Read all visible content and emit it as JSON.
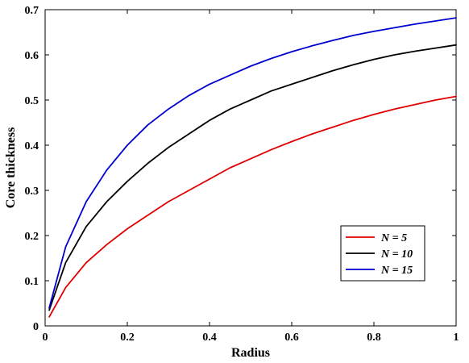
{
  "chart_data": {
    "type": "line",
    "title": "",
    "xlabel": "Radius",
    "ylabel": "Core thickness",
    "xlim": [
      0,
      1
    ],
    "ylim": [
      0,
      0.7
    ],
    "xticks": [
      0,
      0.2,
      0.4,
      0.6,
      0.8,
      1
    ],
    "xtick_labels": [
      "0",
      "0.2",
      "0.4",
      "0.6",
      "0.8",
      "1"
    ],
    "yticks": [
      0,
      0.1,
      0.2,
      0.3,
      0.4,
      0.5,
      0.6,
      0.7
    ],
    "ytick_labels": [
      "0",
      "0.1",
      "0.2",
      "0.3",
      "0.4",
      "0.5",
      "0.6",
      "0.7"
    ],
    "grid": false,
    "legend_position": "bottom-right",
    "x": [
      0.01,
      0.05,
      0.1,
      0.15,
      0.2,
      0.25,
      0.3,
      0.35,
      0.4,
      0.45,
      0.5,
      0.55,
      0.6,
      0.65,
      0.7,
      0.75,
      0.8,
      0.85,
      0.9,
      0.95,
      1.0
    ],
    "series": [
      {
        "name": "N = 5",
        "color": "#e00000",
        "values": [
          0.02,
          0.085,
          0.14,
          0.18,
          0.215,
          0.245,
          0.275,
          0.3,
          0.325,
          0.35,
          0.37,
          0.39,
          0.408,
          0.425,
          0.44,
          0.455,
          0.468,
          0.48,
          0.49,
          0.5,
          0.508
        ]
      },
      {
        "name": "N = 10",
        "color": "#000000",
        "values": [
          0.035,
          0.14,
          0.22,
          0.275,
          0.32,
          0.36,
          0.395,
          0.425,
          0.455,
          0.48,
          0.5,
          0.52,
          0.535,
          0.55,
          0.565,
          0.578,
          0.59,
          0.6,
          0.608,
          0.615,
          0.622
        ]
      },
      {
        "name": "N = 15",
        "color": "#0000d0",
        "values": [
          0.04,
          0.175,
          0.275,
          0.345,
          0.4,
          0.445,
          0.48,
          0.51,
          0.535,
          0.555,
          0.575,
          0.592,
          0.607,
          0.62,
          0.632,
          0.643,
          0.652,
          0.66,
          0.668,
          0.675,
          0.682
        ]
      }
    ]
  }
}
